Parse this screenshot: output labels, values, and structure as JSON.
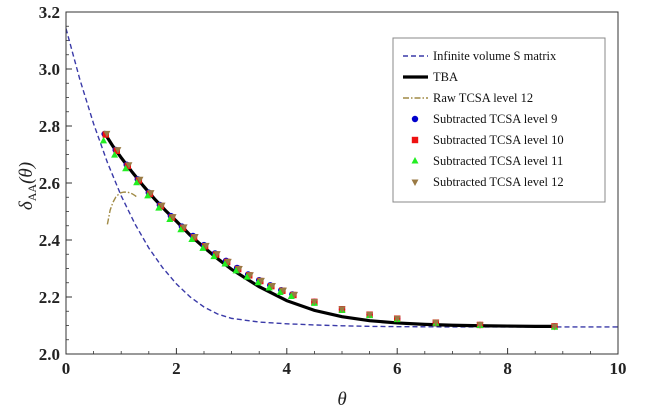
{
  "chart_data": {
    "type": "line",
    "xlabel": "θ",
    "ylabel_main": "δ",
    "ylabel_sub": "AA",
    "ylabel_arg": "(θ)",
    "xlim": [
      0,
      10
    ],
    "ylim": [
      2.0,
      3.2
    ],
    "x_ticks": [
      "0",
      "2",
      "4",
      "6",
      "8",
      "10"
    ],
    "y_ticks": [
      "2.0",
      "2.2",
      "2.4",
      "2.6",
      "2.8",
      "3.0",
      "3.2"
    ],
    "x_tick_values": [
      0,
      2,
      4,
      6,
      8,
      10
    ],
    "y_tick_values": [
      2.0,
      2.2,
      2.4,
      2.6,
      2.8,
      3.0,
      3.2
    ],
    "legend_position": "top-right",
    "series": [
      {
        "name": "Infinite volume S matrix",
        "style": "dashed",
        "color": "#3a3aa8",
        "x": [
          0,
          0.25,
          0.5,
          0.75,
          1.0,
          1.25,
          1.5,
          1.75,
          2.0,
          2.25,
          2.5,
          2.75,
          3.0,
          3.5,
          4.0,
          4.5,
          5.0,
          5.5,
          6.0,
          7.0,
          8.0,
          9.0,
          10.0
        ],
        "y": [
          3.142,
          2.964,
          2.808,
          2.672,
          2.555,
          2.456,
          2.372,
          2.303,
          2.246,
          2.2,
          2.165,
          2.14,
          2.125,
          2.112,
          2.106,
          2.102,
          2.099,
          2.097,
          2.096,
          2.095,
          2.095,
          2.095,
          2.095
        ]
      },
      {
        "name": "TBA",
        "style": "solid-thick",
        "color": "#000000",
        "x": [
          0.7,
          0.85,
          1.0,
          1.2,
          1.4,
          1.6,
          1.8,
          2.0,
          2.25,
          2.5,
          2.75,
          3.0,
          3.5,
          4.0,
          4.5,
          5.0,
          5.5,
          6.0,
          6.5,
          7.0,
          7.5,
          8.0,
          8.5,
          8.85
        ],
        "y": [
          2.775,
          2.729,
          2.689,
          2.638,
          2.59,
          2.545,
          2.504,
          2.466,
          2.417,
          2.374,
          2.334,
          2.297,
          2.236,
          2.187,
          2.153,
          2.131,
          2.117,
          2.109,
          2.104,
          2.101,
          2.099,
          2.098,
          2.097,
          2.097
        ]
      },
      {
        "name": "Raw TCSA level 12",
        "style": "dotdash",
        "color": "#a08a45",
        "x": [
          0.75,
          0.8,
          0.85,
          0.9,
          0.95,
          1.0,
          1.05,
          1.1,
          1.15,
          1.2,
          1.25,
          1.3
        ],
        "y": [
          2.455,
          2.505,
          2.532,
          2.55,
          2.56,
          2.566,
          2.568,
          2.568,
          2.566,
          2.562,
          2.556,
          2.548
        ]
      },
      {
        "name": "Subtracted TCSA level 9",
        "style": "marker-circle",
        "color": "#0000cc",
        "x": [
          0.7,
          0.9,
          1.1,
          1.3,
          1.5,
          1.7,
          1.9,
          2.1,
          2.3,
          2.5,
          2.7,
          2.9,
          3.1,
          3.3,
          3.5,
          3.7,
          3.9,
          4.1,
          4.5,
          5.0,
          5.5,
          6.0,
          6.7,
          7.5,
          8.85
        ],
        "y": [
          2.772,
          2.716,
          2.664,
          2.613,
          2.566,
          2.523,
          2.484,
          2.447,
          2.414,
          2.382,
          2.353,
          2.327,
          2.302,
          2.279,
          2.259,
          2.241,
          2.224,
          2.209,
          2.183,
          2.157,
          2.138,
          2.124,
          2.11,
          2.102,
          2.097
        ]
      },
      {
        "name": "Subtracted TCSA level 10",
        "style": "marker-square",
        "color": "#ee1111",
        "x": [
          0.72,
          0.92,
          1.12,
          1.32,
          1.52,
          1.72,
          1.92,
          2.12,
          2.32,
          2.52,
          2.72,
          2.92,
          3.12,
          3.32,
          3.52,
          3.72,
          3.92,
          4.12,
          4.5,
          5.0,
          5.5,
          6.0,
          6.7,
          7.5,
          8.85
        ],
        "y": [
          2.77,
          2.713,
          2.66,
          2.609,
          2.562,
          2.519,
          2.479,
          2.443,
          2.409,
          2.378,
          2.349,
          2.323,
          2.298,
          2.276,
          2.256,
          2.238,
          2.222,
          2.207,
          2.183,
          2.157,
          2.138,
          2.124,
          2.11,
          2.102,
          2.097
        ]
      },
      {
        "name": "Subtracted TCSA level 11",
        "style": "marker-triangle-up",
        "color": "#22ee22",
        "x": [
          0.68,
          0.88,
          1.08,
          1.28,
          1.48,
          1.68,
          1.88,
          2.08,
          2.28,
          2.48,
          2.68,
          2.88,
          3.08,
          3.28,
          3.48,
          3.68,
          3.88,
          4.08,
          4.5,
          5.0,
          5.5,
          6.0,
          6.7,
          7.5,
          8.85
        ],
        "y": [
          2.748,
          2.698,
          2.65,
          2.601,
          2.555,
          2.512,
          2.472,
          2.436,
          2.402,
          2.371,
          2.342,
          2.316,
          2.292,
          2.27,
          2.25,
          2.232,
          2.216,
          2.202,
          2.178,
          2.153,
          2.135,
          2.121,
          2.108,
          2.1,
          2.094
        ]
      },
      {
        "name": "Subtracted TCSA level 12",
        "style": "marker-triangle-down",
        "color": "#9a7a44",
        "x": [
          0.74,
          0.94,
          1.14,
          1.34,
          1.54,
          1.74,
          1.94,
          2.14,
          2.34,
          2.54,
          2.74,
          2.94,
          3.14,
          3.34,
          3.54,
          3.74,
          3.94,
          4.14,
          4.5,
          5.0,
          5.5,
          6.0,
          6.7,
          7.5,
          8.85
        ],
        "y": [
          2.774,
          2.717,
          2.664,
          2.613,
          2.566,
          2.522,
          2.482,
          2.446,
          2.412,
          2.381,
          2.352,
          2.325,
          2.3,
          2.278,
          2.258,
          2.24,
          2.224,
          2.209,
          2.184,
          2.158,
          2.139,
          2.125,
          2.111,
          2.103,
          2.097
        ]
      }
    ]
  }
}
